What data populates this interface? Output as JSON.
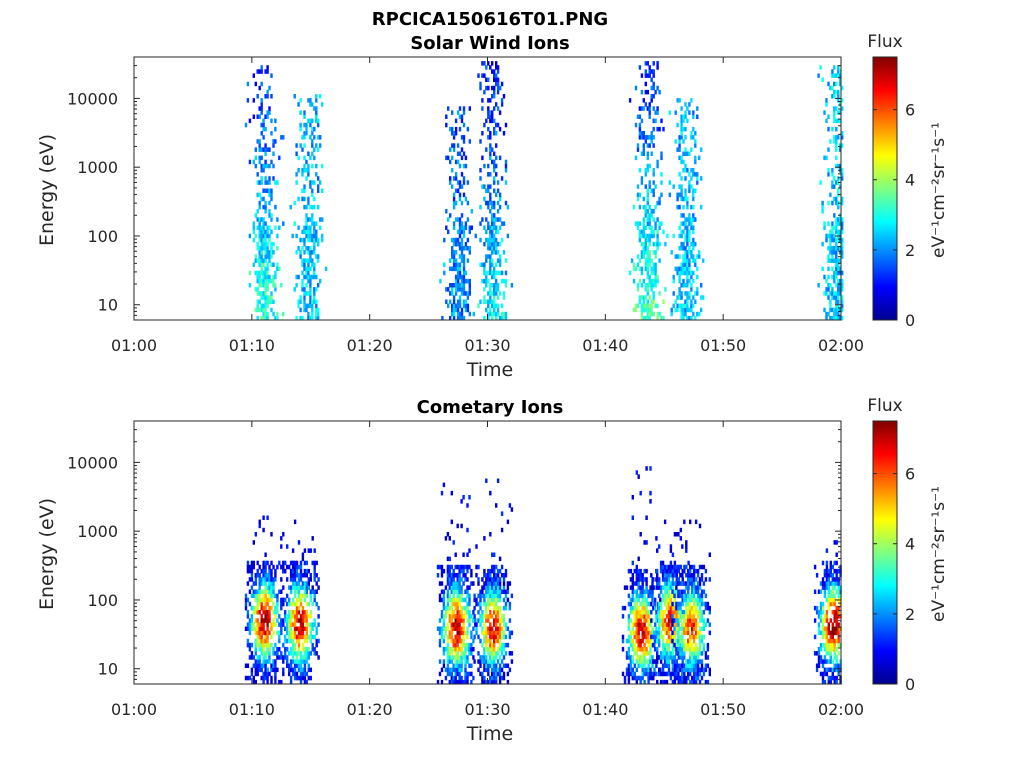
{
  "figure_title": "RPCICA150616T01.PNG",
  "chart_data": [
    {
      "type": "heatmap",
      "title": "Solar Wind Ions",
      "xlabel": "Time",
      "ylabel": "Energy (eV)",
      "x_ticks": [
        "01:00",
        "01:10",
        "01:20",
        "01:30",
        "01:40",
        "01:50",
        "02:00"
      ],
      "xlim": [
        "01:00",
        "02:00"
      ],
      "y_scale": "log",
      "y_ticks": [
        "10",
        "100",
        "1000",
        "10000"
      ],
      "ylim": [
        6,
        40000
      ],
      "colorbar": {
        "title": "Flux",
        "unit": "eV⁻¹cm⁻²sr⁻¹s⁻¹",
        "ticks": [
          "0",
          "2",
          "4",
          "6"
        ],
        "range": [
          0,
          7.5
        ],
        "colormap": "jet"
      },
      "bursts": [
        {
          "time": "01:10",
          "t_center_min": 11.0,
          "flux_low": 3.2,
          "flux_high": 1.2,
          "energy_max": 30000
        },
        {
          "time": "01:15",
          "t_center_min": 14.8,
          "flux_low": 2.4,
          "flux_high": 2.2,
          "energy_max": 12000
        },
        {
          "time": "01:27",
          "t_center_min": 27.5,
          "flux_low": 2.0,
          "flux_high": 1.6,
          "energy_max": 8000
        },
        {
          "time": "01:30",
          "t_center_min": 30.4,
          "flux_low": 2.8,
          "flux_high": 1.0,
          "energy_max": 35000
        },
        {
          "time": "01:44",
          "t_center_min": 43.6,
          "flux_low": 3.4,
          "flux_high": 1.1,
          "energy_max": 35000
        },
        {
          "time": "01:47",
          "t_center_min": 46.8,
          "flux_low": 2.4,
          "flux_high": 2.2,
          "energy_max": 10000
        },
        {
          "time": "02:00",
          "t_center_min": 59.6,
          "flux_low": 2.4,
          "flux_high": 2.4,
          "energy_max": 30000
        }
      ]
    },
    {
      "type": "heatmap",
      "title": "Cometary Ions",
      "xlabel": "Time",
      "ylabel": "Energy (eV)",
      "x_ticks": [
        "01:00",
        "01:10",
        "01:20",
        "01:30",
        "01:40",
        "01:50",
        "02:00"
      ],
      "xlim": [
        "01:00",
        "02:00"
      ],
      "y_scale": "log",
      "y_ticks": [
        "10",
        "100",
        "1000",
        "10000"
      ],
      "ylim": [
        6,
        40000
      ],
      "colorbar": {
        "title": "Flux",
        "unit": "eV⁻¹cm⁻²sr⁻¹s⁻¹",
        "ticks": [
          "0",
          "2",
          "4",
          "6"
        ],
        "range": [
          0,
          7.5
        ],
        "colormap": "jet"
      },
      "bursts": [
        {
          "time": "01:11",
          "t_center_min": 11.0,
          "peak_flux": 6.8,
          "peak_energy": 50,
          "energy_max": 2000
        },
        {
          "time": "01:14",
          "t_center_min": 14.0,
          "peak_flux": 6.6,
          "peak_energy": 45,
          "energy_max": 1500
        },
        {
          "time": "01:27",
          "t_center_min": 27.3,
          "peak_flux": 6.8,
          "peak_energy": 40,
          "energy_max": 5000
        },
        {
          "time": "01:30",
          "t_center_min": 30.4,
          "peak_flux": 6.4,
          "peak_energy": 40,
          "energy_max": 6000
        },
        {
          "time": "01:43",
          "t_center_min": 43.0,
          "peak_flux": 6.6,
          "peak_energy": 35,
          "energy_max": 8500
        },
        {
          "time": "01:45",
          "t_center_min": 45.4,
          "peak_flux": 6.0,
          "peak_energy": 50,
          "energy_max": 2000
        },
        {
          "time": "01:47",
          "t_center_min": 47.2,
          "peak_flux": 6.0,
          "peak_energy": 40,
          "energy_max": 1500
        },
        {
          "time": "02:00",
          "t_center_min": 59.3,
          "peak_flux": 7.0,
          "peak_energy": 45,
          "energy_max": 1200
        }
      ]
    }
  ]
}
